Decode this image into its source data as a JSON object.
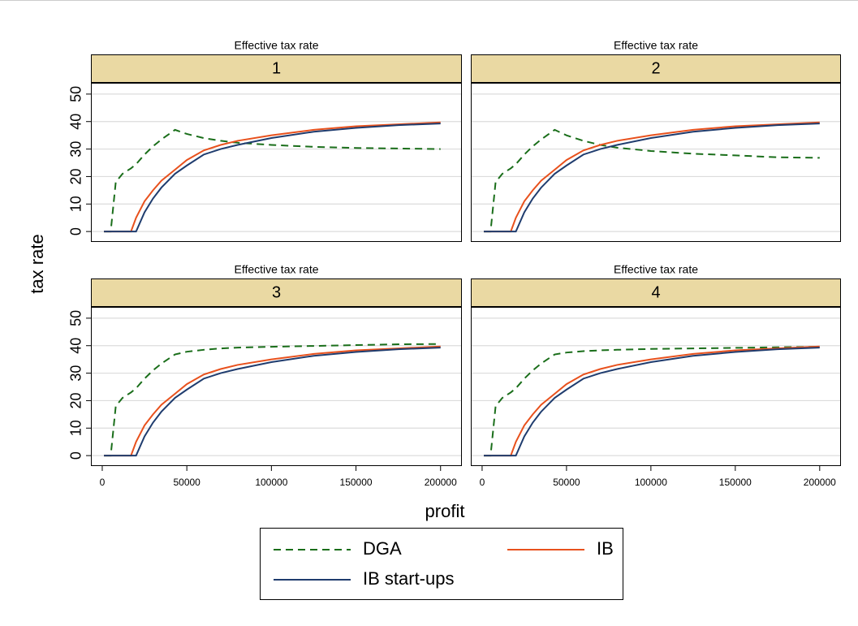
{
  "chart_data": [
    {
      "type": "line",
      "title": "Effective tax rate",
      "subtitle": "1",
      "x": [
        1000,
        5000,
        8000,
        12000,
        17000,
        20000,
        25000,
        30000,
        35000,
        43000,
        50000,
        60000,
        70000,
        80000,
        100000,
        125000,
        150000,
        175000,
        200000
      ],
      "series": [
        {
          "name": "DGA",
          "color": "#1a6e1a",
          "linestyle": "dashed",
          "values": [
            0,
            0,
            18,
            21,
            23,
            24.5,
            28,
            31,
            33.5,
            37,
            35.5,
            34,
            33,
            32.3,
            31.5,
            30.8,
            30.4,
            30.2,
            30
          ]
        },
        {
          "name": "IB",
          "color": "#e8511d",
          "linestyle": "solid",
          "values": [
            0,
            0,
            0,
            0,
            0,
            5,
            11,
            15,
            18.5,
            22.5,
            26,
            29.5,
            31.5,
            33,
            35,
            37,
            38.3,
            39,
            39.7
          ]
        },
        {
          "name": "IB start-ups",
          "color": "#1f3c6e",
          "linestyle": "solid",
          "values": [
            0,
            0,
            0,
            0,
            0,
            0,
            7,
            12,
            16,
            21,
            24,
            28,
            30,
            31.5,
            34,
            36.3,
            37.7,
            38.7,
            39.3
          ]
        }
      ],
      "xlim": [
        -6700,
        212600
      ],
      "ylim": [
        -3.8,
        54.1
      ],
      "yticks": [
        0,
        10,
        20,
        30,
        40,
        50
      ],
      "grid": true
    },
    {
      "type": "line",
      "title": "Effective tax rate",
      "subtitle": "2",
      "x": [
        1000,
        5000,
        8000,
        12000,
        17000,
        20000,
        25000,
        30000,
        35000,
        43000,
        50000,
        60000,
        70000,
        80000,
        100000,
        125000,
        150000,
        175000,
        200000
      ],
      "series": [
        {
          "name": "DGA",
          "color": "#1a6e1a",
          "linestyle": "dashed",
          "values": [
            0,
            0,
            18,
            21,
            23,
            24.5,
            28,
            31,
            33.5,
            37,
            35,
            33,
            31.5,
            30.5,
            29.3,
            28.3,
            27.7,
            27,
            26.8
          ]
        },
        {
          "name": "IB",
          "color": "#e8511d",
          "linestyle": "solid",
          "values": [
            0,
            0,
            0,
            0,
            0,
            5,
            11,
            15,
            18.5,
            22.5,
            26,
            29.5,
            31.5,
            33,
            35,
            37,
            38.3,
            39,
            39.7
          ]
        },
        {
          "name": "IB start-ups",
          "color": "#1f3c6e",
          "linestyle": "solid",
          "values": [
            0,
            0,
            0,
            0,
            0,
            0,
            7,
            12,
            16,
            21,
            24,
            28,
            30,
            31.5,
            34,
            36.3,
            37.7,
            38.7,
            39.3
          ]
        }
      ],
      "xlim": [
        -6700,
        212600
      ],
      "ylim": [
        -3.8,
        54.1
      ],
      "yticks": [
        0,
        10,
        20,
        30,
        40,
        50
      ],
      "grid": true
    },
    {
      "type": "line",
      "title": "Effective tax rate",
      "subtitle": "3",
      "x": [
        1000,
        5000,
        8000,
        12000,
        17000,
        20000,
        25000,
        30000,
        35000,
        43000,
        50000,
        60000,
        70000,
        80000,
        100000,
        125000,
        150000,
        175000,
        200000
      ],
      "series": [
        {
          "name": "DGA",
          "color": "#1a6e1a",
          "linestyle": "dashed",
          "values": [
            0,
            0,
            18,
            21,
            23,
            24.5,
            28,
            31,
            33.5,
            36.8,
            37.8,
            38.5,
            39,
            39.3,
            39.6,
            39.9,
            40.2,
            40.5,
            40.6
          ]
        },
        {
          "name": "IB",
          "color": "#e8511d",
          "linestyle": "solid",
          "values": [
            0,
            0,
            0,
            0,
            0,
            5,
            11,
            15,
            18.5,
            22.5,
            26,
            29.5,
            31.5,
            33,
            35,
            37,
            38.3,
            39,
            39.7
          ]
        },
        {
          "name": "IB start-ups",
          "color": "#1f3c6e",
          "linestyle": "solid",
          "values": [
            0,
            0,
            0,
            0,
            0,
            0,
            7,
            12,
            16,
            21,
            24,
            28,
            30,
            31.5,
            34,
            36.3,
            37.7,
            38.7,
            39.3
          ]
        }
      ],
      "xlim": [
        -6700,
        212600
      ],
      "ylim": [
        -3.8,
        54.1
      ],
      "xticks": [
        0,
        50000,
        100000,
        150000,
        200000
      ],
      "yticks": [
        0,
        10,
        20,
        30,
        40,
        50
      ],
      "grid": true
    },
    {
      "type": "line",
      "title": "Effective tax rate",
      "subtitle": "4",
      "x": [
        1000,
        5000,
        8000,
        12000,
        17000,
        20000,
        25000,
        30000,
        35000,
        43000,
        50000,
        60000,
        70000,
        80000,
        100000,
        125000,
        150000,
        175000,
        200000
      ],
      "series": [
        {
          "name": "DGA",
          "color": "#1a6e1a",
          "linestyle": "dashed",
          "values": [
            0,
            0,
            18,
            21,
            23,
            24.5,
            28,
            31,
            33.5,
            36.8,
            37.5,
            38,
            38.3,
            38.5,
            38.8,
            39,
            39.2,
            39.4,
            39.6
          ]
        },
        {
          "name": "IB",
          "color": "#e8511d",
          "linestyle": "solid",
          "values": [
            0,
            0,
            0,
            0,
            0,
            5,
            11,
            15,
            18.5,
            22.5,
            26,
            29.5,
            31.5,
            33,
            35,
            37,
            38.3,
            39,
            39.7
          ]
        },
        {
          "name": "IB start-ups",
          "color": "#1f3c6e",
          "linestyle": "solid",
          "values": [
            0,
            0,
            0,
            0,
            0,
            0,
            7,
            12,
            16,
            21,
            24,
            28,
            30,
            31.5,
            34,
            36.3,
            37.7,
            38.7,
            39.3
          ]
        }
      ],
      "xlim": [
        -6700,
        212600
      ],
      "ylim": [
        -3.8,
        54.1
      ],
      "xticks": [
        0,
        50000,
        100000,
        150000,
        200000
      ],
      "yticks": [
        0,
        10,
        20,
        30,
        40,
        50
      ],
      "grid": true
    }
  ],
  "shared": {
    "ylabel": "tax rate",
    "xlabel": "profit"
  }
}
